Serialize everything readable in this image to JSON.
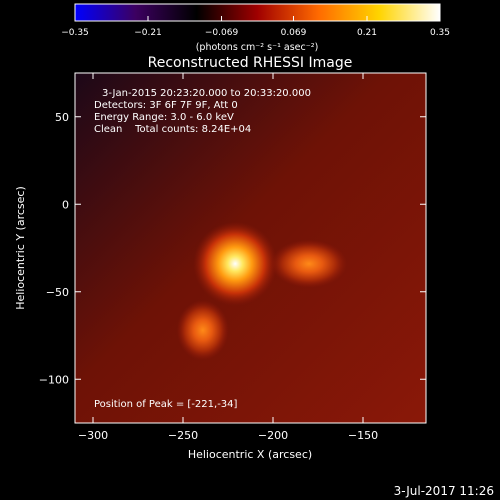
{
  "chart_data": {
    "type": "heatmap",
    "title": "Reconstructed RHESSI Image",
    "xlabel": "Heliocentric X (arcsec)",
    "ylabel": "Heliocentric Y (arcsec)",
    "xlim": [
      -310,
      -115
    ],
    "ylim": [
      -125,
      75
    ],
    "x_ticks": [
      -300,
      -250,
      -200,
      -150
    ],
    "x_tick_labels": [
      "−300",
      "−250",
      "−200",
      "−150"
    ],
    "y_ticks": [
      50,
      0,
      -50,
      -100
    ],
    "y_tick_labels": [
      "50",
      "0",
      "−50",
      "−100"
    ],
    "colorbar": {
      "min": -0.35,
      "max": 0.35,
      "ticks": [
        -0.35,
        -0.21,
        -0.069,
        0.069,
        0.21,
        0.35
      ],
      "tick_labels": [
        "−0.35",
        "−0.21",
        "−0.069",
        "0.069",
        "0.21",
        "0.35"
      ],
      "unit_label": "(photons cm⁻² s⁻¹ asec⁻²)",
      "colors": [
        "#0000ff",
        "#3c0060",
        "#000000",
        "#a00000",
        "#ff6a00",
        "#ffd400",
        "#ffffff"
      ]
    },
    "sources": [
      {
        "x": -221,
        "y": -34,
        "intensity": 0.35
      },
      {
        "x": -180,
        "y": -34,
        "intensity": 0.19
      },
      {
        "x": -239,
        "y": -72,
        "intensity": 0.16
      }
    ],
    "background": {
      "colors": [
        "#1c0818",
        "#6e1206",
        "#8a1808"
      ]
    }
  },
  "annotations": {
    "time_range": "3-Jan-2015 20:23:20.000 to 20:33:20.000",
    "detectors": "Detectors: 3F 6F 7F 9F, Att 0",
    "energy": "Energy Range: 3.0 - 6.0 keV",
    "clean": "Clean    Total counts: 8.24E+04",
    "peak": "Position of Peak = [-221,-34]"
  },
  "footer": {
    "timestamp": "3-Jul-2017 11:26"
  }
}
